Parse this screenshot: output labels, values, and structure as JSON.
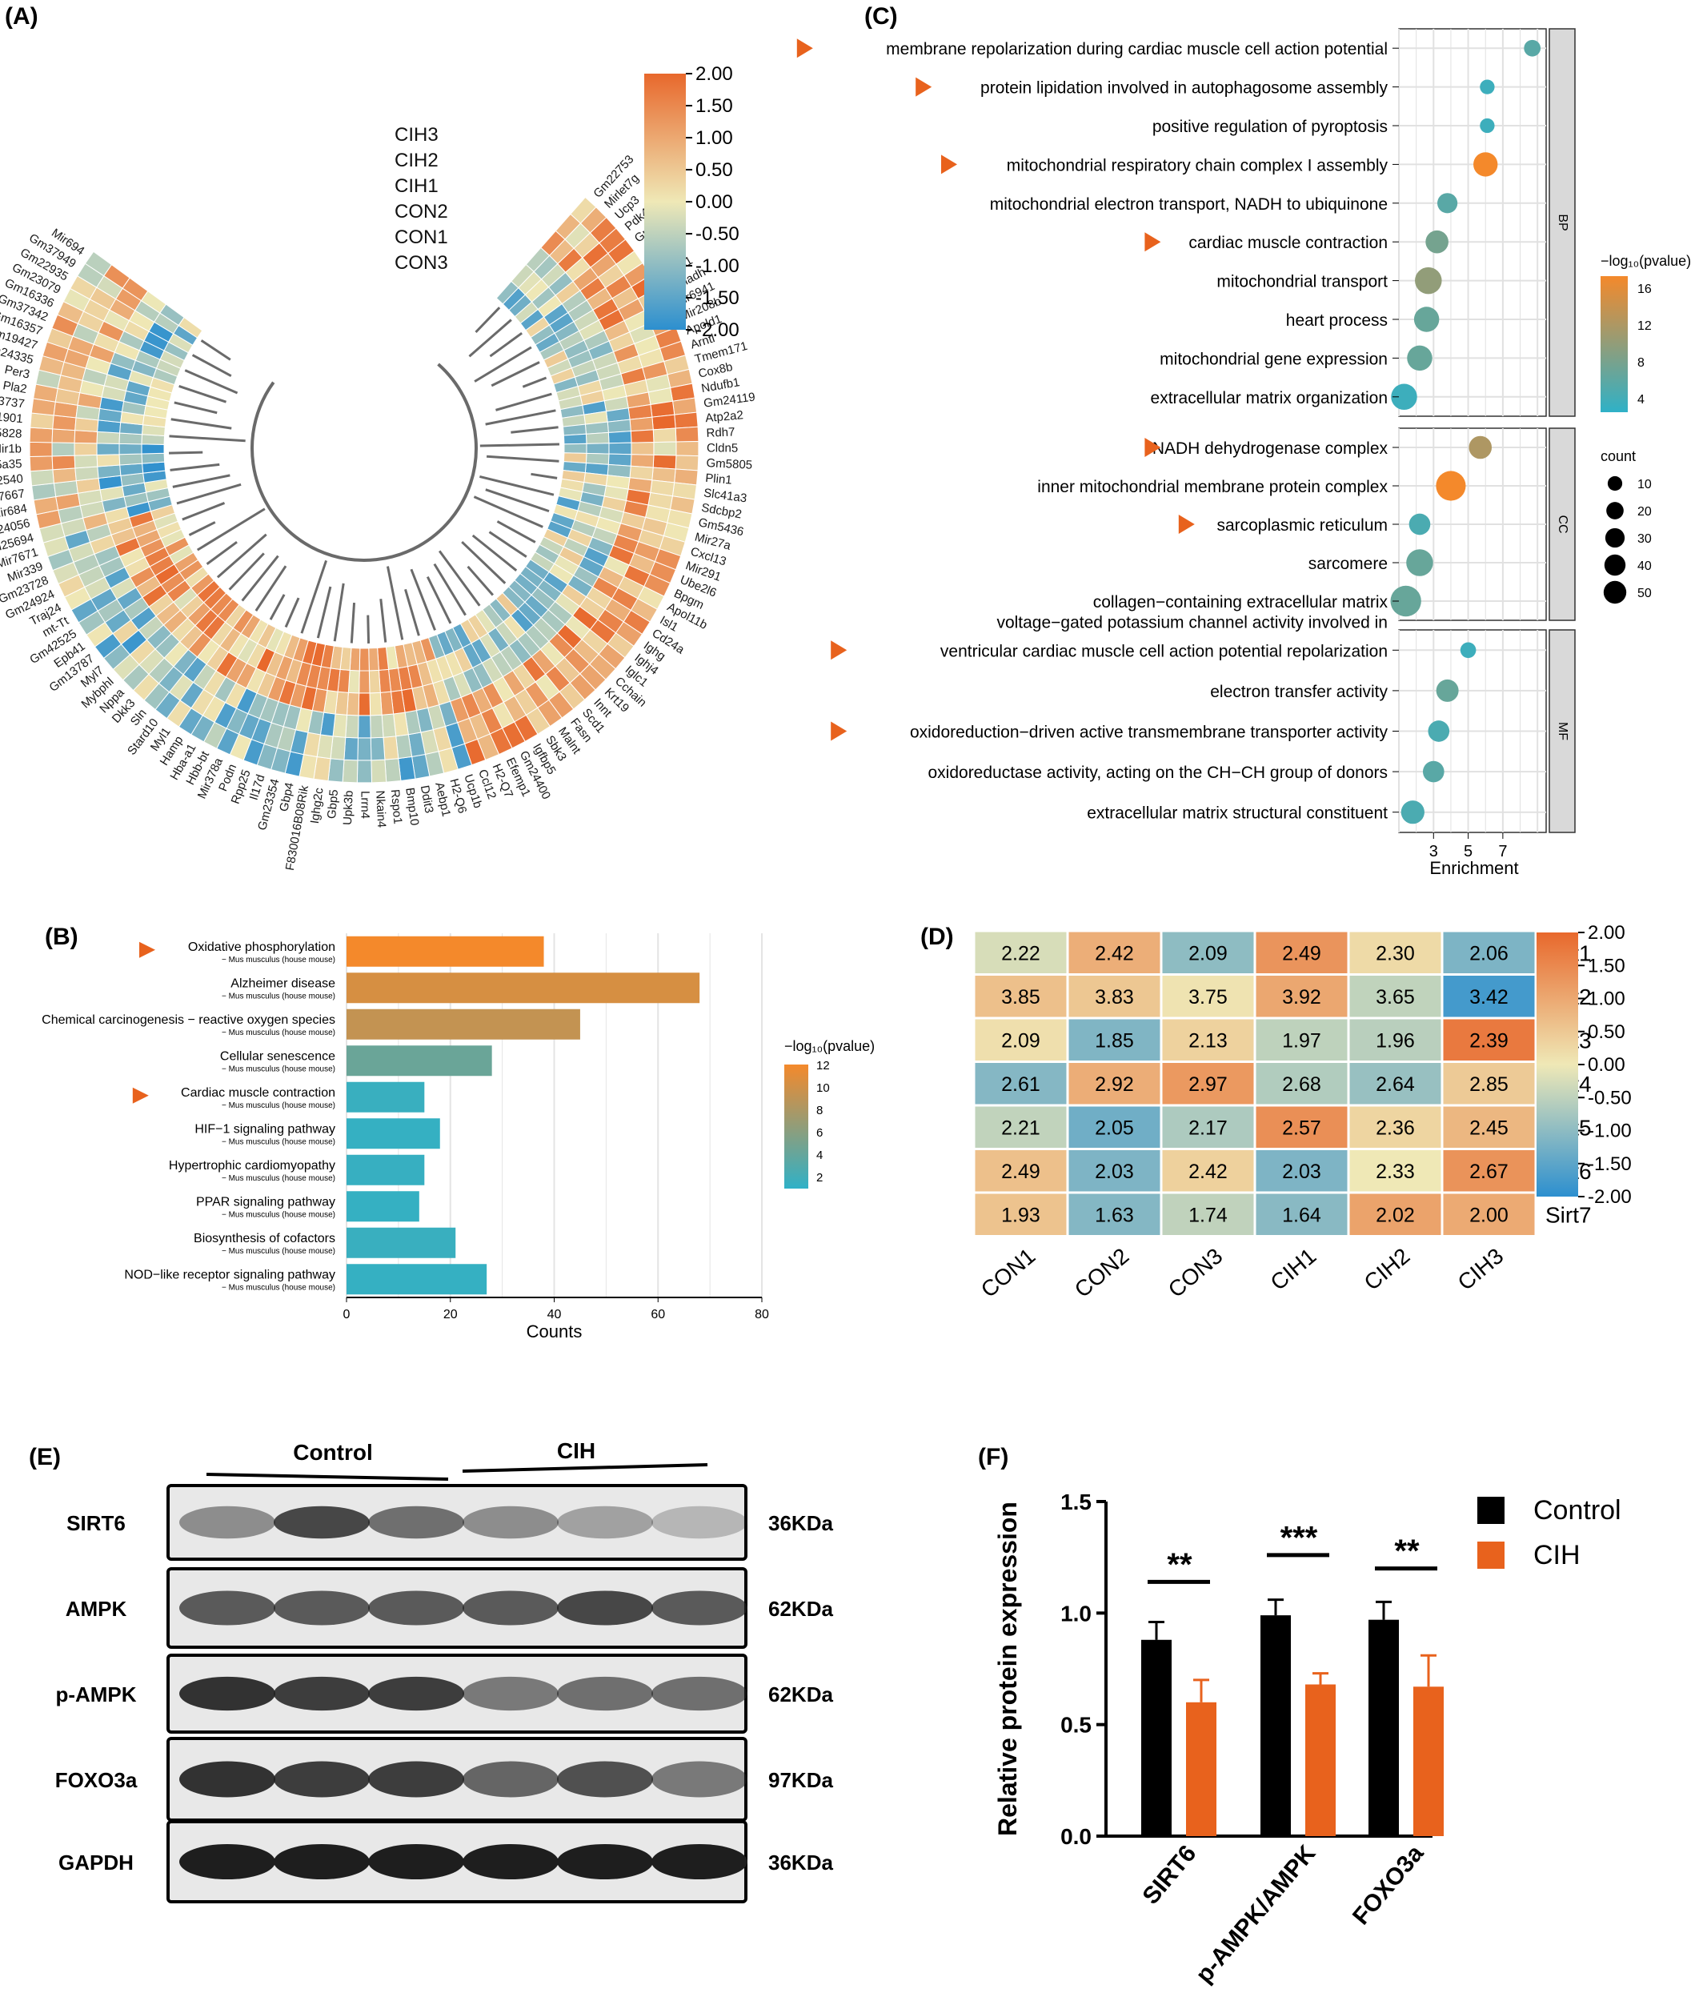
{
  "panel_letters": {
    "a": "(A)",
    "b": "(B)",
    "c": "(C)",
    "d": "(D)",
    "e": "(E)",
    "f": "(F)"
  },
  "colors": {
    "heat_low": "#2c8fcf",
    "heat_mid": "#efe8b6",
    "heat_high": "#e8682c",
    "orange": "#f07a2a",
    "bar_low": "#2fb1c7",
    "bar_high": "#f4892b",
    "control": "#000000",
    "cih": "#e8621d",
    "marker": "#e8621d"
  },
  "panel_a": {
    "rows": [
      "CIH3",
      "CIH2",
      "CIH1",
      "CON2",
      "CON1",
      "CON3"
    ],
    "scale_ticks": [
      "2.00",
      "1.50",
      "1.00",
      "0.50",
      "0.00",
      "-0.50",
      "-1.00",
      "-1.50",
      "-2.00"
    ],
    "genes": [
      "Gm22753",
      "Mirlet7g",
      "Ucp3",
      "Pdk4",
      "Gm16253",
      "Angptl4",
      "Mir350",
      "Depp1",
      "Ehhadh",
      "Mir6941",
      "Mir208b",
      "Apold1",
      "Arntl",
      "Tmem171",
      "Cox8b",
      "Ndufb1",
      "Gm24119",
      "Atp2a2",
      "Rdh7",
      "Cldn5",
      "Gm5805",
      "Plin1",
      "Slc41a3",
      "Sdcbp2",
      "Gm5436",
      "Mir27a",
      "Cxcl13",
      "Mir291",
      "Ube2l6",
      "Bpgm",
      "Apol11b",
      "Isl1",
      "Cd24a",
      "Ighg",
      "Ighj4",
      "Iglc1",
      "Cchain",
      "Krt19",
      "Innt",
      "Scd1",
      "Fasn",
      "Malnt",
      "Sbk3",
      "Igfbp5",
      "Gm24400",
      "Efemp1",
      "H2-Q7",
      "Ccl12",
      "Ucp1b",
      "H2-Q6",
      "Aebp1",
      "Ddit3",
      "Bmp10",
      "Rspo1",
      "Nkain4",
      "Lrrn4",
      "Upk3b",
      "Gbp5",
      "Ighg2c",
      "F830016B08Rik",
      "Gbp4",
      "Gm23354",
      "Il17d",
      "Rpp25",
      "Podn",
      "Mir378a",
      "Hbb-bt",
      "Hba-a1",
      "Hamp",
      "Myl1",
      "Stard10",
      "Sln",
      "Dkk3",
      "Nppa",
      "Mybphl",
      "Myl7",
      "Gm13787",
      "Epb41",
      "Gm42525",
      "mt-Tt",
      "Traj24",
      "Gm24924",
      "Gm23728",
      "Mir339",
      "Mir7671",
      "Gm25694",
      "Gm24056",
      "Mir684",
      "Mir7667",
      "Gm22540",
      "Slc25a35",
      "Mir1b",
      "Gm45828",
      "Mir1901",
      "Gm13737",
      "Pla2",
      "Per3",
      "Gm24335",
      "Gm19427",
      "Gm16357",
      "Gm37342",
      "Gm16336",
      "Gm23079",
      "Gm22935",
      "Gm37949",
      "Mir694"
    ]
  },
  "panel_b": {
    "chart_data": {
      "type": "bar",
      "orientation": "horizontal",
      "categories": [
        "Oxidative phosphorylation",
        "Alzheimer disease",
        "Chemical carcinogenesis − reactive oxygen species",
        "Cellular senescence",
        "Cardiac muscle contraction",
        "HIF−1 signaling pathway",
        "Hypertrophic cardiomyopathy",
        "PPAR signaling pathway",
        "Biosynthesis of cofactors",
        "NOD−like receptor signaling pathway"
      ],
      "subtitle": "− Mus musculus (house mouse)",
      "values": [
        38,
        68,
        45,
        28,
        15,
        18,
        15,
        14,
        21,
        27
      ],
      "neglog10p": [
        12,
        10.5,
        9.5,
        5,
        2.5,
        2.3,
        2.4,
        2.3,
        2.5,
        2.3
      ],
      "marked": [
        true,
        false,
        false,
        false,
        true,
        false,
        false,
        false,
        false,
        false
      ],
      "xlabel": "Counts",
      "xlim": [
        0,
        80
      ],
      "xticks": [
        "0",
        "20",
        "40",
        "60",
        "80"
      ],
      "legend_title": "−log₁₀(pvalue)",
      "legend_ticks": [
        "12",
        "10",
        "8",
        "6",
        "4",
        "2"
      ]
    }
  },
  "panel_c": {
    "chart_data": {
      "type": "scatter",
      "xlabel": "Enrichment",
      "xticks": [
        "3",
        "5",
        "7"
      ],
      "groups": [
        {
          "name": "BP",
          "terms": [
            {
              "label": "membrane repolarization during cardiac muscle cell action potential",
              "enrichment": 8.7,
              "neglog10p": 5,
              "count": 5,
              "marked": true
            },
            {
              "label": "protein lipidation involved in autophagosome assembly",
              "enrichment": 6.1,
              "neglog10p": 3,
              "count": 3,
              "marked": true
            },
            {
              "label": "positive regulation of pyroptosis",
              "enrichment": 6.1,
              "neglog10p": 3,
              "count": 3,
              "marked": false
            },
            {
              "label": "mitochondrial respiratory chain complex I assembly",
              "enrichment": 6.0,
              "neglog10p": 16,
              "count": 18,
              "marked": true
            },
            {
              "label": "mitochondrial electron transport, NADH to ubiquinone",
              "enrichment": 3.8,
              "neglog10p": 5,
              "count": 10,
              "marked": false
            },
            {
              "label": "cardiac muscle contraction",
              "enrichment": 3.2,
              "neglog10p": 7,
              "count": 15,
              "marked": true
            },
            {
              "label": "mitochondrial transport",
              "enrichment": 2.7,
              "neglog10p": 9,
              "count": 24,
              "marked": false
            },
            {
              "label": "heart process",
              "enrichment": 2.6,
              "neglog10p": 6,
              "count": 20,
              "marked": false
            },
            {
              "label": "mitochondrial gene expression",
              "enrichment": 2.2,
              "neglog10p": 6,
              "count": 20,
              "marked": false
            },
            {
              "label": "extracellular matrix organization",
              "enrichment": 1.3,
              "neglog10p": 3,
              "count": 22,
              "marked": false
            }
          ]
        },
        {
          "name": "CC",
          "terms": [
            {
              "label": "NADH dehydrogenase complex",
              "enrichment": 5.7,
              "neglog10p": 11,
              "count": 15,
              "marked": true
            },
            {
              "label": "inner mitochondrial membrane protein complex",
              "enrichment": 4.0,
              "neglog10p": 16,
              "count": 32,
              "marked": false
            },
            {
              "label": "sarcoplasmic reticulum",
              "enrichment": 2.2,
              "neglog10p": 4,
              "count": 12,
              "marked": true
            },
            {
              "label": "sarcomere",
              "enrichment": 2.2,
              "neglog10p": 6,
              "count": 24,
              "marked": false
            },
            {
              "label": "collagen−containing extracellular matrix",
              "enrichment": 1.4,
              "neglog10p": 6,
              "count": 35,
              "marked": false
            }
          ]
        },
        {
          "name": "MF",
          "terms": [
            {
              "label": "voltage−gated potassium channel activity involved in ventricular cardiac muscle cell action potential repolarization",
              "enrichment": 5.0,
              "neglog10p": 3,
              "count": 4,
              "marked": true
            },
            {
              "label": "electron transfer activity",
              "enrichment": 3.8,
              "neglog10p": 6,
              "count": 14,
              "marked": false
            },
            {
              "label": "oxidoreduction−driven active transmembrane transporter activity",
              "enrichment": 3.3,
              "neglog10p": 4,
              "count": 12,
              "marked": true
            },
            {
              "label": "oxidoreductase activity, acting on the CH−CH group of donors",
              "enrichment": 3.0,
              "neglog10p": 5,
              "count": 12,
              "marked": false
            },
            {
              "label": "extracellular matrix structural constituent",
              "enrichment": 1.8,
              "neglog10p": 4,
              "count": 16,
              "marked": false
            }
          ]
        }
      ],
      "legend_color_title": "−log₁₀(pvalue)",
      "legend_color_ticks": [
        "16",
        "12",
        "8",
        "4"
      ],
      "legend_size_title": "count",
      "legend_size_values": [
        "10",
        "20",
        "30",
        "40",
        "50"
      ]
    }
  },
  "panel_d": {
    "chart_data": {
      "type": "heatmap",
      "columns": [
        "CON1",
        "CON2",
        "CON3",
        "CIH1",
        "CIH2",
        "CIH3"
      ],
      "rows": [
        "Sirt1",
        "Sirt2",
        "Sirt3",
        "Sirt4",
        "Sirt5",
        "Sirt6",
        "Sirt7"
      ],
      "values": [
        [
          "2.22",
          "2.42",
          "2.09",
          "2.49",
          "2.30",
          "2.06"
        ],
        [
          "3.85",
          "3.83",
          "3.75",
          "3.92",
          "3.65",
          "3.42"
        ],
        [
          "2.09",
          "1.85",
          "2.13",
          "1.97",
          "1.96",
          "2.39"
        ],
        [
          "2.61",
          "2.92",
          "2.97",
          "2.68",
          "2.64",
          "2.85"
        ],
        [
          "2.21",
          "2.05",
          "2.17",
          "2.57",
          "2.36",
          "2.45"
        ],
        [
          "2.49",
          "2.03",
          "2.42",
          "2.03",
          "2.33",
          "2.67"
        ],
        [
          "1.93",
          "1.63",
          "1.74",
          "1.64",
          "2.02",
          "2.00"
        ]
      ],
      "scale_ticks": [
        "2.00",
        "1.50",
        "1.00",
        "0.50",
        "0.00",
        "-0.50",
        "-1.00",
        "-1.50",
        "-2.00"
      ]
    }
  },
  "panel_e": {
    "groups": [
      "Control",
      "CIH"
    ],
    "blots": [
      {
        "protein": "SIRT6",
        "size": "36KDa"
      },
      {
        "protein": "AMPK",
        "size": "62KDa"
      },
      {
        "protein": "p-AMPK",
        "size": "62KDa"
      },
      {
        "protein": "FOXO3a",
        "size": "97KDa"
      },
      {
        "protein": "GAPDH",
        "size": "36KDa"
      }
    ]
  },
  "panel_f": {
    "chart_data": {
      "type": "bar",
      "categories": [
        "SIRT6",
        "p-AMPK/AMPK",
        "FOXO3a"
      ],
      "series": [
        {
          "name": "Control",
          "values": [
            0.88,
            0.99,
            0.97
          ],
          "errors": [
            0.08,
            0.07,
            0.08
          ]
        },
        {
          "name": "CIH",
          "values": [
            0.6,
            0.68,
            0.67
          ],
          "errors": [
            0.1,
            0.05,
            0.14
          ]
        }
      ],
      "significance": [
        "**",
        "***",
        "**"
      ],
      "ylabel": "Relative protein expression",
      "ylim": [
        0,
        1.5
      ],
      "yticks": [
        "0.0",
        "0.5",
        "1.0",
        "1.5"
      ]
    }
  }
}
